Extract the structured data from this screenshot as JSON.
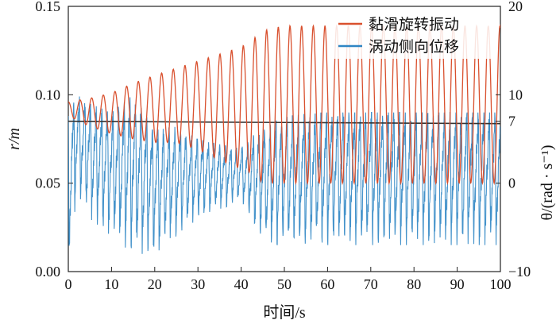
{
  "chart_data": {
    "type": "line",
    "title": "",
    "xlabel": "时间/s",
    "ylabel_left": "r/m",
    "ylabel_right": "θ/(rad · s⁻¹)",
    "x_ticks": [
      "0",
      "10",
      "20",
      "30",
      "40",
      "50",
      "60",
      "70",
      "80",
      "90",
      "100"
    ],
    "y_left_ticks": [
      "0.00",
      "0.05",
      "0.10",
      "0.15"
    ],
    "y_right_ticks": [
      "−10",
      "0",
      "7",
      "10",
      "20"
    ],
    "xlim": [
      0,
      100
    ],
    "ylim_left": [
      0,
      0.15
    ],
    "ylim_right": [
      -10,
      20
    ],
    "grid": false,
    "legend_position": "top-right",
    "reference_line": {
      "axis": "right",
      "value": 7,
      "color": "#333333"
    },
    "series": [
      {
        "name": "黏滑旋转振动",
        "axis": "right",
        "color": "#d9502e",
        "oscillation_period_s": 2.7,
        "envelope_x": [
          0,
          5,
          10,
          15,
          20,
          25,
          30,
          35,
          40,
          43,
          45,
          47,
          50,
          60,
          70,
          80,
          90,
          100
        ],
        "upper": [
          9.2,
          9.6,
          10.2,
          11.3,
          12.2,
          13.0,
          13.8,
          14.6,
          15.4,
          16.4,
          17.2,
          17.5,
          17.8,
          17.8,
          17.8,
          17.8,
          17.8,
          17.8
        ],
        "lower": [
          7.6,
          6.4,
          5.6,
          5.0,
          4.6,
          4.6,
          3.8,
          2.6,
          1.6,
          1.0,
          0.0,
          0.0,
          0.0,
          0.0,
          0.0,
          0.0,
          0.0,
          0.0
        ]
      },
      {
        "name": "涡动侧向位移",
        "axis": "left",
        "color": "#2f86c4",
        "oscillation_period_s": 1.3,
        "envelope_x": [
          0,
          2,
          5,
          10,
          15,
          20,
          25,
          30,
          35,
          40,
          44,
          46,
          50,
          60,
          70,
          80,
          90,
          100
        ],
        "upper": [
          0.088,
          0.1,
          0.095,
          0.09,
          0.1,
          0.08,
          0.082,
          0.075,
          0.072,
          0.07,
          0.08,
          0.082,
          0.088,
          0.09,
          0.09,
          0.09,
          0.09,
          0.09
        ],
        "lower": [
          0.0,
          0.045,
          0.03,
          0.02,
          0.01,
          0.01,
          0.02,
          0.03,
          0.035,
          0.04,
          0.02,
          0.015,
          0.015,
          0.015,
          0.015,
          0.015,
          0.015,
          0.015
        ]
      }
    ]
  }
}
